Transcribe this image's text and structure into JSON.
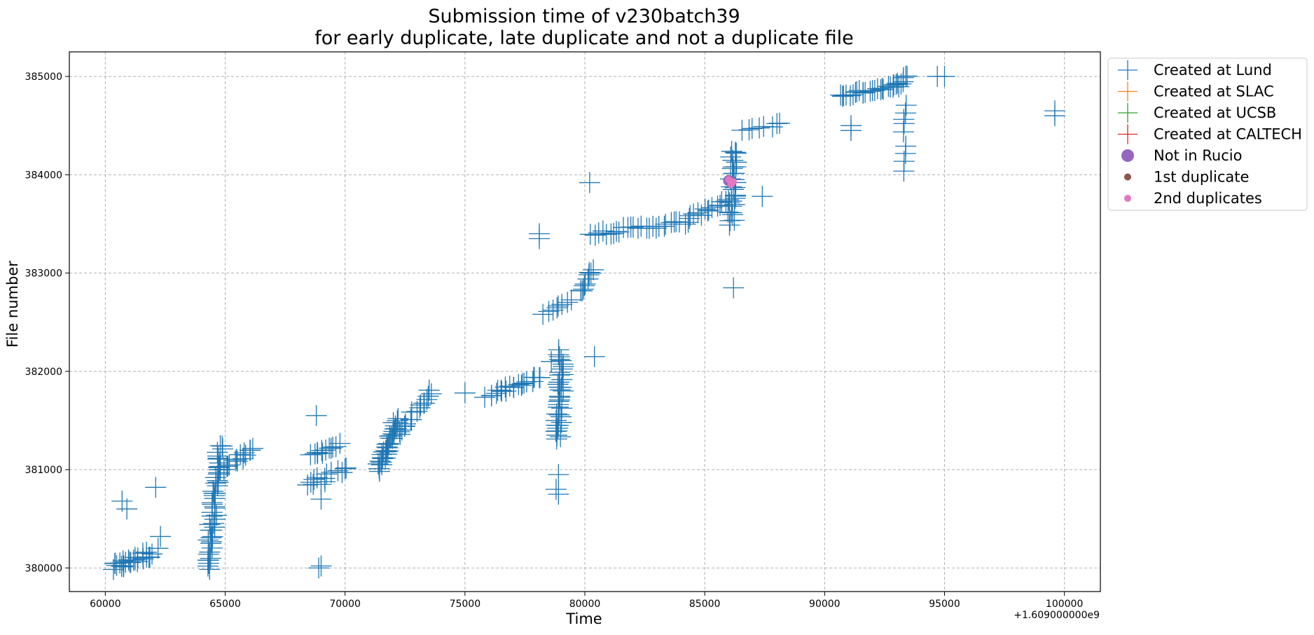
{
  "chart_data": {
    "type": "scatter",
    "title_line1": "Submission time of v230batch39",
    "title_line2": "for early duplicate, late duplicate and not a duplicate file",
    "xlabel": "Time",
    "ylabel": "File number",
    "x_offset_label": "+1.609000000e9",
    "xlim": [
      58500,
      101500
    ],
    "ylim": [
      379760,
      385250
    ],
    "x_ticks": [
      60000,
      65000,
      70000,
      75000,
      80000,
      85000,
      90000,
      95000,
      100000
    ],
    "x_tick_labels": [
      "60000",
      "65000",
      "70000",
      "75000",
      "80000",
      "85000",
      "90000",
      "95000",
      "100000"
    ],
    "y_ticks": [
      380000,
      381000,
      382000,
      383000,
      384000,
      385000
    ],
    "y_tick_labels": [
      "380000",
      "381000",
      "382000",
      "383000",
      "384000",
      "385000"
    ],
    "grid": true,
    "legend_position": "outside-top-right",
    "legend": [
      {
        "label": "Created at Lund",
        "marker": "plus",
        "color": "#1f77b4"
      },
      {
        "label": "Created at SLAC",
        "marker": "plus",
        "color": "#ff7f0e"
      },
      {
        "label": "Created at UCSB",
        "marker": "plus",
        "color": "#2ca02c"
      },
      {
        "label": "Created at CALTECH",
        "marker": "plus",
        "color": "#d62728"
      },
      {
        "label": "Not in Rucio",
        "marker": "circle-large",
        "color": "#9467bd"
      },
      {
        "label": "1st duplicate",
        "marker": "circle-small",
        "color": "#8c564b"
      },
      {
        "label": "2nd duplicates",
        "marker": "circle-small",
        "color": "#e377c2"
      }
    ],
    "series": [
      {
        "name": "Created at Lund",
        "color": "#1f77b4",
        "marker": "plus",
        "segments": [
          {
            "x0": 60300,
            "y0": 380000,
            "x1": 61900,
            "y1": 380150,
            "n": 26,
            "jx": 250,
            "jy": 80
          },
          {
            "x0": 64300,
            "y0": 380000,
            "x1": 64800,
            "y1": 381250,
            "n": 50,
            "jx": 250,
            "jy": 60
          },
          {
            "x0": 64800,
            "y0": 381000,
            "x1": 66200,
            "y1": 381200,
            "n": 16,
            "jx": 250,
            "jy": 50
          },
          {
            "x0": 68600,
            "y0": 381150,
            "x1": 69700,
            "y1": 381250,
            "n": 12,
            "jx": 200,
            "jy": 40
          },
          {
            "x0": 68400,
            "y0": 380850,
            "x1": 70100,
            "y1": 381000,
            "n": 12,
            "jx": 300,
            "jy": 60
          },
          {
            "x0": 71400,
            "y0": 381000,
            "x1": 72200,
            "y1": 381500,
            "n": 34,
            "jx": 200,
            "jy": 80
          },
          {
            "x0": 72200,
            "y0": 381350,
            "x1": 73600,
            "y1": 381800,
            "n": 18,
            "jx": 200,
            "jy": 50
          },
          {
            "x0": 75900,
            "y0": 381750,
            "x1": 78200,
            "y1": 381950,
            "n": 22,
            "jx": 200,
            "jy": 40
          },
          {
            "x0": 78900,
            "y0": 381300,
            "x1": 79000,
            "y1": 382200,
            "n": 36,
            "jx": 250,
            "jy": 60
          },
          {
            "x0": 78300,
            "y0": 382600,
            "x1": 79400,
            "y1": 382720,
            "n": 8,
            "jx": 150,
            "jy": 40
          },
          {
            "x0": 79800,
            "y0": 382800,
            "x1": 80300,
            "y1": 383050,
            "n": 10,
            "jx": 120,
            "jy": 50
          },
          {
            "x0": 80300,
            "y0": 383400,
            "x1": 84300,
            "y1": 383520,
            "n": 28,
            "jx": 150,
            "jy": 50
          },
          {
            "x0": 84300,
            "y0": 383550,
            "x1": 86000,
            "y1": 383750,
            "n": 14,
            "jx": 150,
            "jy": 50
          },
          {
            "x0": 86100,
            "y0": 383500,
            "x1": 86200,
            "y1": 384250,
            "n": 30,
            "jx": 300,
            "jy": 50
          },
          {
            "x0": 86600,
            "y0": 384450,
            "x1": 88200,
            "y1": 384520,
            "n": 8,
            "jx": 200,
            "jy": 30
          },
          {
            "x0": 90600,
            "y0": 384800,
            "x1": 92800,
            "y1": 384900,
            "n": 22,
            "jx": 150,
            "jy": 40
          },
          {
            "x0": 92800,
            "y0": 384880,
            "x1": 93500,
            "y1": 385000,
            "n": 10,
            "jx": 150,
            "jy": 50
          },
          {
            "x0": 93300,
            "y0": 384450,
            "x1": 93400,
            "y1": 384700,
            "n": 5,
            "jx": 100,
            "jy": 40
          },
          {
            "x0": 93300,
            "y0": 384050,
            "x1": 93400,
            "y1": 384300,
            "n": 4,
            "jx": 80,
            "jy": 40
          }
        ],
        "points": [
          [
            60700,
            380680
          ],
          [
            60900,
            380600
          ],
          [
            62100,
            380820
          ],
          [
            62200,
            380200
          ],
          [
            62300,
            380320
          ],
          [
            68900,
            380000
          ],
          [
            69000,
            380020
          ],
          [
            68800,
            381550
          ],
          [
            68700,
            380900
          ],
          [
            69000,
            380700
          ],
          [
            69000,
            380850
          ],
          [
            75000,
            381780
          ],
          [
            78100,
            383400
          ],
          [
            78100,
            383350
          ],
          [
            78800,
            381500
          ],
          [
            78800,
            380800
          ],
          [
            78900,
            380950
          ],
          [
            78900,
            380750
          ],
          [
            79100,
            381800
          ],
          [
            78600,
            382100
          ],
          [
            80200,
            383920
          ],
          [
            80400,
            382150
          ],
          [
            86200,
            382850
          ],
          [
            87400,
            383780
          ],
          [
            91100,
            384450
          ],
          [
            91100,
            384500
          ],
          [
            94700,
            385000
          ],
          [
            95000,
            385000
          ],
          [
            99600,
            384600
          ],
          [
            99600,
            384650
          ]
        ]
      },
      {
        "name": "Not in Rucio",
        "color": "#9467bd",
        "marker": "circle-large",
        "points": [
          [
            86000,
            383940
          ]
        ]
      },
      {
        "name": "1st duplicate",
        "color": "#8c564b",
        "marker": "circle-small",
        "points": [
          [
            86100,
            383930
          ]
        ]
      },
      {
        "name": "2nd duplicates",
        "color": "#e377c2",
        "marker": "circle-small",
        "points": [
          [
            86000,
            383950
          ],
          [
            86100,
            383900
          ],
          [
            86200,
            383930
          ]
        ]
      }
    ]
  }
}
